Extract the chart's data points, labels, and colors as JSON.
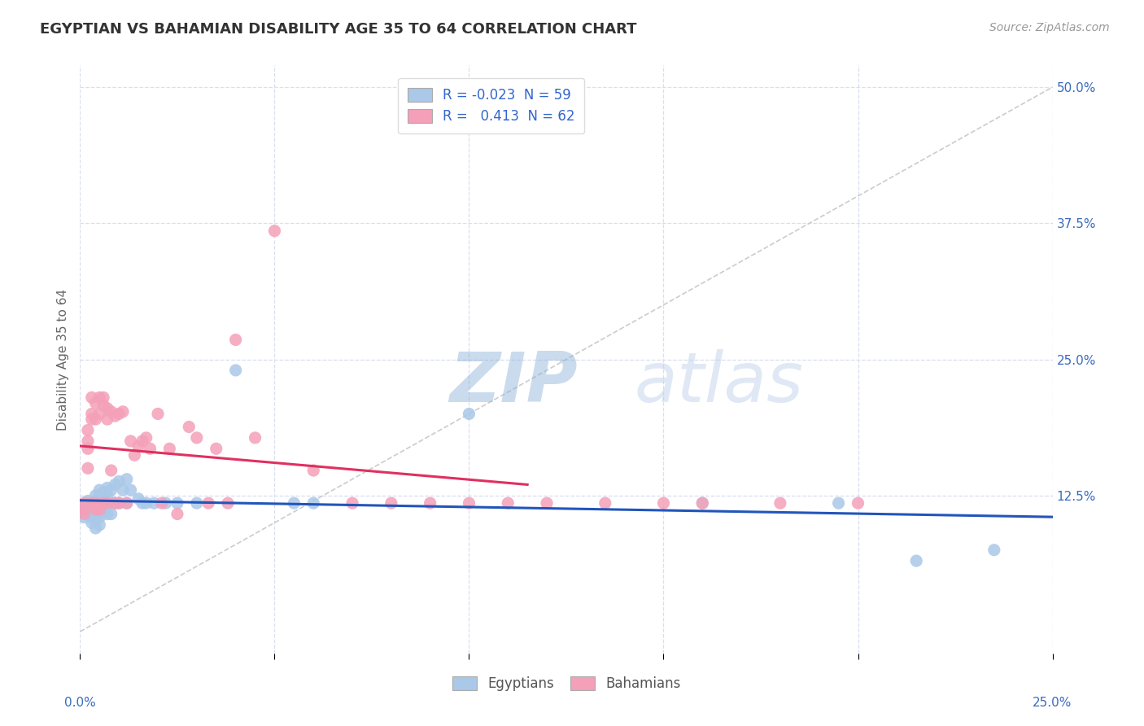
{
  "title": "EGYPTIAN VS BAHAMIAN DISABILITY AGE 35 TO 64 CORRELATION CHART",
  "source": "Source: ZipAtlas.com",
  "ylabel": "Disability Age 35 to 64",
  "xlim": [
    0.0,
    0.25
  ],
  "ylim": [
    -0.02,
    0.52
  ],
  "xticks": [
    0.0,
    0.05,
    0.1,
    0.15,
    0.2,
    0.25
  ],
  "xticklabels_show": [
    "0.0%",
    "25.0%"
  ],
  "xticklabels_show_pos": [
    0.0,
    0.25
  ],
  "ytick_positions": [
    0.125,
    0.25,
    0.375,
    0.5
  ],
  "ytick_labels": [
    "12.5%",
    "25.0%",
    "37.5%",
    "50.0%"
  ],
  "legend_R_egyptian": "-0.023",
  "legend_N_egyptian": "59",
  "legend_R_bahamian": "0.413",
  "legend_N_bahamian": "62",
  "egyptian_color": "#aac8e8",
  "bahamian_color": "#f4a0b8",
  "egyptian_trend_color": "#2255bb",
  "bahamian_trend_color": "#e03060",
  "ref_line_color": "#cccccc",
  "watermark_zip": "ZIP",
  "watermark_atlas": "atlas",
  "background_color": "#ffffff",
  "grid_color": "#d8dff0",
  "egyptian_x": [
    0.001,
    0.001,
    0.001,
    0.002,
    0.002,
    0.002,
    0.002,
    0.003,
    0.003,
    0.003,
    0.003,
    0.003,
    0.004,
    0.004,
    0.004,
    0.004,
    0.004,
    0.004,
    0.004,
    0.005,
    0.005,
    0.005,
    0.005,
    0.005,
    0.005,
    0.006,
    0.006,
    0.006,
    0.006,
    0.007,
    0.007,
    0.007,
    0.007,
    0.008,
    0.008,
    0.008,
    0.009,
    0.009,
    0.01,
    0.01,
    0.011,
    0.012,
    0.012,
    0.013,
    0.015,
    0.016,
    0.017,
    0.019,
    0.022,
    0.025,
    0.03,
    0.04,
    0.055,
    0.06,
    0.1,
    0.16,
    0.195,
    0.215,
    0.235
  ],
  "egyptian_y": [
    0.115,
    0.11,
    0.105,
    0.12,
    0.118,
    0.112,
    0.108,
    0.115,
    0.112,
    0.108,
    0.105,
    0.1,
    0.125,
    0.12,
    0.118,
    0.112,
    0.108,
    0.102,
    0.095,
    0.13,
    0.125,
    0.118,
    0.112,
    0.105,
    0.098,
    0.128,
    0.122,
    0.118,
    0.11,
    0.132,
    0.125,
    0.118,
    0.108,
    0.13,
    0.118,
    0.108,
    0.135,
    0.118,
    0.138,
    0.118,
    0.13,
    0.14,
    0.118,
    0.13,
    0.122,
    0.118,
    0.118,
    0.118,
    0.118,
    0.118,
    0.118,
    0.24,
    0.118,
    0.118,
    0.2,
    0.118,
    0.118,
    0.065,
    0.075
  ],
  "bahamian_x": [
    0.001,
    0.001,
    0.001,
    0.002,
    0.002,
    0.002,
    0.002,
    0.003,
    0.003,
    0.003,
    0.003,
    0.004,
    0.004,
    0.004,
    0.004,
    0.005,
    0.005,
    0.005,
    0.006,
    0.006,
    0.006,
    0.007,
    0.007,
    0.007,
    0.008,
    0.008,
    0.009,
    0.009,
    0.01,
    0.01,
    0.011,
    0.012,
    0.013,
    0.014,
    0.015,
    0.016,
    0.017,
    0.018,
    0.02,
    0.021,
    0.023,
    0.025,
    0.028,
    0.03,
    0.033,
    0.035,
    0.038,
    0.04,
    0.045,
    0.05,
    0.06,
    0.07,
    0.08,
    0.09,
    0.1,
    0.11,
    0.12,
    0.135,
    0.15,
    0.16,
    0.18,
    0.2
  ],
  "bahamian_y": [
    0.108,
    0.112,
    0.118,
    0.15,
    0.168,
    0.175,
    0.185,
    0.118,
    0.195,
    0.2,
    0.215,
    0.112,
    0.118,
    0.195,
    0.21,
    0.112,
    0.2,
    0.215,
    0.118,
    0.208,
    0.215,
    0.118,
    0.195,
    0.205,
    0.148,
    0.202,
    0.118,
    0.198,
    0.118,
    0.2,
    0.202,
    0.118,
    0.175,
    0.162,
    0.17,
    0.175,
    0.178,
    0.168,
    0.2,
    0.118,
    0.168,
    0.108,
    0.188,
    0.178,
    0.118,
    0.168,
    0.118,
    0.268,
    0.178,
    0.368,
    0.148,
    0.118,
    0.118,
    0.118,
    0.118,
    0.118,
    0.118,
    0.118,
    0.118,
    0.118,
    0.118,
    0.118
  ]
}
